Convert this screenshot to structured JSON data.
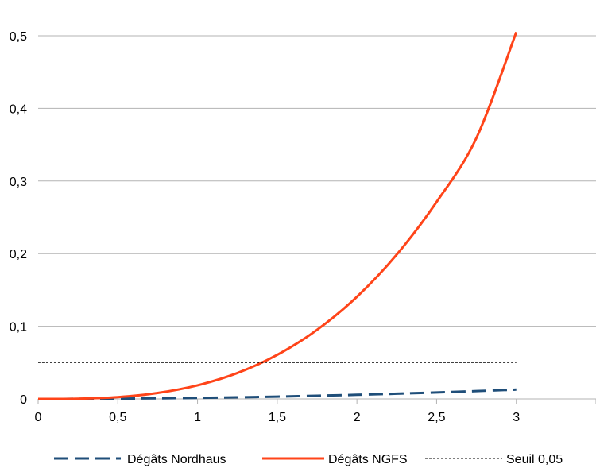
{
  "chart_data": {
    "type": "line",
    "x": [
      0,
      0.25,
      0.5,
      0.75,
      1,
      1.25,
      1.5,
      1.75,
      2,
      2.25,
      2.5,
      2.75,
      3
    ],
    "series": [
      {
        "name": "Dégâts Nordhaus",
        "values": [
          0,
          0.0001,
          0.0004,
          0.0008,
          0.0014,
          0.0022,
          0.0032,
          0.0044,
          0.0057,
          0.0072,
          0.0089,
          0.0108,
          0.0128
        ],
        "color": "#1f4e79",
        "style": "dashed"
      },
      {
        "name": "Dégâts NGFS",
        "values": [
          0,
          0.0003,
          0.0025,
          0.0082,
          0.0187,
          0.0356,
          0.0606,
          0.0951,
          0.1406,
          0.1988,
          0.2712,
          0.3594,
          0.505
        ],
        "color": "#ff4419",
        "style": "solid"
      },
      {
        "name": "Seuil 0,05",
        "values": [
          0.05,
          0.05,
          0.05,
          0.05,
          0.05,
          0.05,
          0.05,
          0.05,
          0.05,
          0.05,
          0.05,
          0.05,
          0.05
        ],
        "color": "#000000",
        "style": "dotted"
      }
    ],
    "xlim": [
      0,
      3.5
    ],
    "ylim": [
      0,
      0.5
    ],
    "x_ticks": [
      "0",
      "0,5",
      "1",
      "1,5",
      "2",
      "2,5",
      "3"
    ],
    "x_tick_values": [
      0,
      0.5,
      1,
      1.5,
      2,
      2.5,
      3
    ],
    "y_ticks": [
      "0",
      "0,1",
      "0,2",
      "0,3",
      "0,4",
      "0,5"
    ],
    "y_tick_values": [
      0,
      0.1,
      0.2,
      0.3,
      0.4,
      0.5
    ],
    "grid": "horizontal",
    "legend_position": "bottom",
    "title": "",
    "xlabel": "",
    "ylabel": ""
  }
}
